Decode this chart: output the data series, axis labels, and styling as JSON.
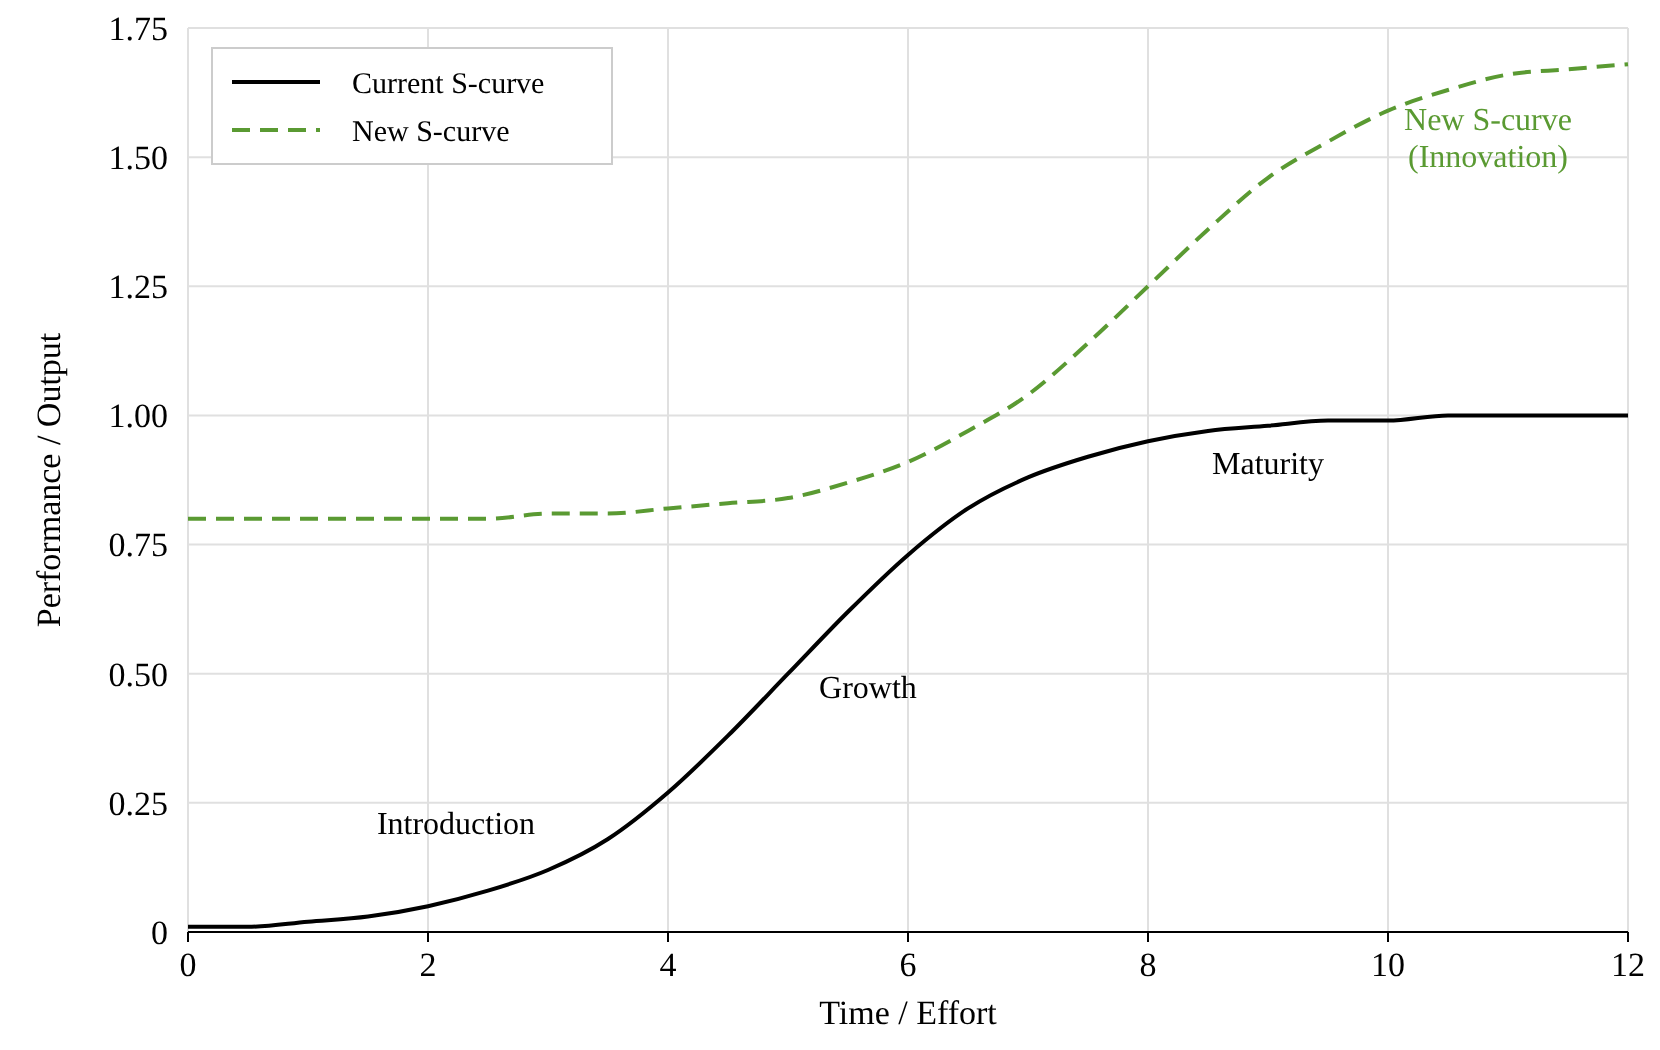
{
  "chart_data": {
    "type": "line",
    "xlabel": "Time / Effort",
    "ylabel": "Performance / Output",
    "xlim": [
      0,
      12
    ],
    "ylim": [
      0,
      1.75
    ],
    "xticks": [
      0,
      2,
      4,
      6,
      8,
      10,
      12
    ],
    "yticks": [
      {
        "value": 0,
        "label": "0"
      },
      {
        "value": 0.25,
        "label": "0.25"
      },
      {
        "value": 0.5,
        "label": "0.50"
      },
      {
        "value": 0.75,
        "label": "0.75"
      },
      {
        "value": 1,
        "label": "1.00"
      },
      {
        "value": 1.25,
        "label": "1.25"
      },
      {
        "value": 1.5,
        "label": "1.50"
      },
      {
        "value": 1.75,
        "label": "1.75"
      }
    ],
    "grid": true,
    "legend": "top left",
    "x": [
      0,
      0.5,
      1,
      1.5,
      2,
      2.5,
      3,
      3.5,
      4,
      4.5,
      5,
      5.5,
      6,
      6.5,
      7,
      7.5,
      8,
      8.5,
      9,
      9.5,
      10,
      10.5,
      11,
      11.5,
      12
    ],
    "series": [
      {
        "name": "Current S-curve",
        "color": "#000000",
        "line_style": "solid",
        "values": [
          0.01,
          0.01,
          0.02,
          0.03,
          0.05,
          0.08,
          0.12,
          0.18,
          0.27,
          0.38,
          0.5,
          0.62,
          0.73,
          0.82,
          0.88,
          0.92,
          0.95,
          0.97,
          0.98,
          0.99,
          0.99,
          1.0,
          1.0,
          1.0,
          1.0
        ]
      },
      {
        "name": "New S-curve",
        "color": "#5a9a32",
        "line_style": "dashed",
        "values": [
          0.8,
          0.8,
          0.8,
          0.8,
          0.8,
          0.8,
          0.81,
          0.81,
          0.82,
          0.83,
          0.84,
          0.87,
          0.91,
          0.97,
          1.04,
          1.14,
          1.25,
          1.36,
          1.46,
          1.53,
          1.59,
          1.63,
          1.66,
          1.67,
          1.68
        ]
      }
    ],
    "annotations": [
      {
        "text": "Introduction",
        "x": 3,
        "y": 0.12
      },
      {
        "text": "Growth",
        "x": 5,
        "y": 0.5
      },
      {
        "text": "Maturity",
        "x": 9,
        "y": 0.98
      },
      {
        "text": "New S-curve\n(Innovation)",
        "x": 11,
        "y": 1.66
      }
    ]
  }
}
